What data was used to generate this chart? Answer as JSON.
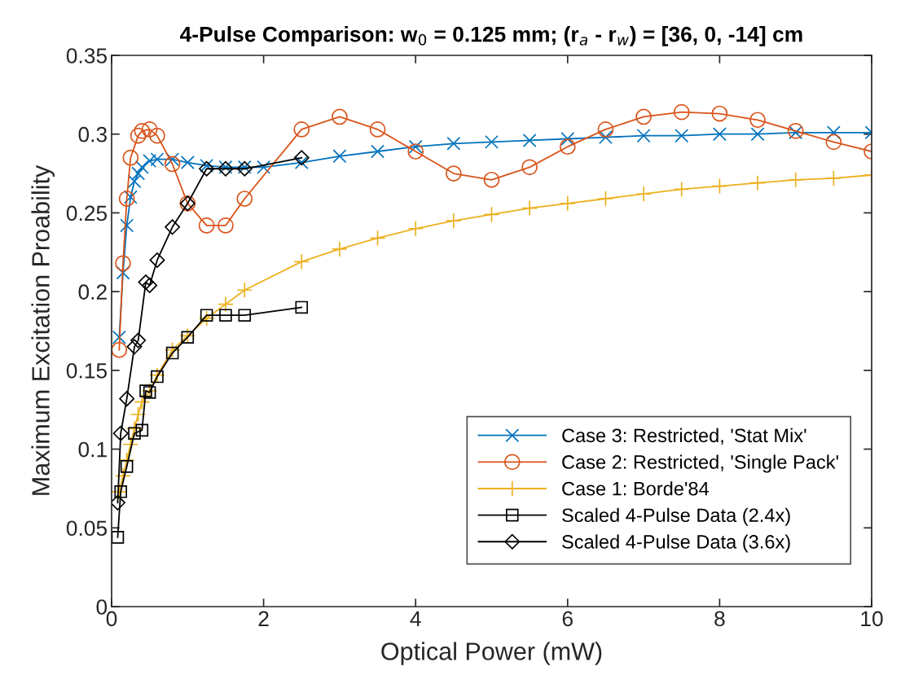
{
  "chart_data": {
    "type": "line",
    "title": "4-Pulse Comparison: w$_{0}$ = 0.125 mm; (r$_{a}$ - r$_{w}$) = [36, 0, -14] cm",
    "xlabel": "Optical Power (mW)",
    "ylabel": "Maximum Excitation Proability",
    "xlim": [
      0,
      10
    ],
    "ylim": [
      0,
      0.35
    ],
    "xticks": [
      0,
      2,
      4,
      6,
      8,
      10
    ],
    "yticks": [
      0,
      0.05,
      0.1,
      0.15,
      0.2,
      0.25,
      0.3,
      0.35
    ],
    "grid": false,
    "legend": "lower right",
    "line_style": "solid",
    "series": [
      {
        "name": "Case 3: Restricted, 'Stat Mix'",
        "color": "#0072bd",
        "marker": "cross",
        "x": [
          0.1,
          0.15,
          0.2,
          0.25,
          0.3,
          0.35,
          0.4,
          0.5,
          0.6,
          0.8,
          1,
          1.25,
          1.5,
          1.75,
          2,
          2.5,
          3,
          3.5,
          4,
          4.5,
          5,
          5.5,
          6,
          6.5,
          7,
          7.5,
          8,
          8.5,
          9,
          9.5,
          10
        ],
        "values": [
          0.171,
          0.212,
          0.242,
          0.26,
          0.27,
          0.275,
          0.279,
          0.283,
          0.284,
          0.284,
          0.282,
          0.28,
          0.279,
          0.279,
          0.279,
          0.282,
          0.286,
          0.289,
          0.292,
          0.294,
          0.295,
          0.296,
          0.297,
          0.298,
          0.299,
          0.299,
          0.3,
          0.3,
          0.301,
          0.301,
          0.301
        ]
      },
      {
        "name": "Case 2: Restricted, 'Single Pack'",
        "color": "#d95319",
        "marker": "circle",
        "x": [
          0.1,
          0.15,
          0.2,
          0.25,
          0.35,
          0.4,
          0.5,
          0.6,
          0.8,
          1,
          1.25,
          1.5,
          1.75,
          2.5,
          3,
          3.5,
          4,
          4.5,
          5,
          5.5,
          6,
          6.5,
          7,
          7.5,
          8,
          8.5,
          9,
          9.5,
          10
        ],
        "values": [
          0.163,
          0.218,
          0.259,
          0.285,
          0.299,
          0.302,
          0.303,
          0.299,
          0.281,
          0.256,
          0.242,
          0.242,
          0.259,
          0.303,
          0.311,
          0.303,
          0.289,
          0.275,
          0.271,
          0.279,
          0.292,
          0.303,
          0.311,
          0.314,
          0.313,
          0.309,
          0.302,
          0.295,
          0.289
        ]
      },
      {
        "name": "Case 1: Borde'84",
        "color": "#edb120",
        "marker": "plus",
        "x": [
          0.1,
          0.15,
          0.2,
          0.25,
          0.3,
          0.35,
          0.4,
          0.5,
          0.6,
          0.8,
          1,
          1.25,
          1.5,
          1.75,
          2.5,
          3,
          3.5,
          4,
          4.5,
          5,
          5.5,
          6,
          6.5,
          7,
          7.5,
          8,
          8.5,
          9,
          9.5,
          10
        ],
        "values": [
          0.073,
          0.083,
          0.093,
          0.103,
          0.113,
          0.122,
          0.13,
          0.137,
          0.147,
          0.163,
          0.172,
          0.183,
          0.192,
          0.201,
          0.219,
          0.227,
          0.234,
          0.24,
          0.245,
          0.249,
          0.253,
          0.256,
          0.259,
          0.262,
          0.265,
          0.267,
          0.269,
          0.271,
          0.272,
          0.274
        ]
      },
      {
        "name": "Scaled 4-Pulse Data (2.4x)",
        "color": "#000000",
        "marker": "square",
        "x": [
          0.08,
          0.12,
          0.2,
          0.3,
          0.4,
          0.45,
          0.5,
          0.6,
          0.8,
          1,
          1.25,
          1.5,
          1.75,
          2.5
        ],
        "values": [
          0.044,
          0.073,
          0.089,
          0.11,
          0.112,
          0.137,
          0.136,
          0.146,
          0.161,
          0.171,
          0.185,
          0.185,
          0.185,
          0.19
        ]
      },
      {
        "name": "Scaled 4-Pulse Data (3.6x)",
        "color": "#000000",
        "marker": "diamond",
        "x": [
          0.08,
          0.12,
          0.2,
          0.3,
          0.35,
          0.45,
          0.5,
          0.6,
          0.8,
          1,
          1.25,
          1.5,
          1.75,
          2.5
        ],
        "values": [
          0.066,
          0.11,
          0.132,
          0.165,
          0.169,
          0.206,
          0.204,
          0.22,
          0.241,
          0.256,
          0.278,
          0.278,
          0.278,
          0.285
        ]
      }
    ]
  }
}
